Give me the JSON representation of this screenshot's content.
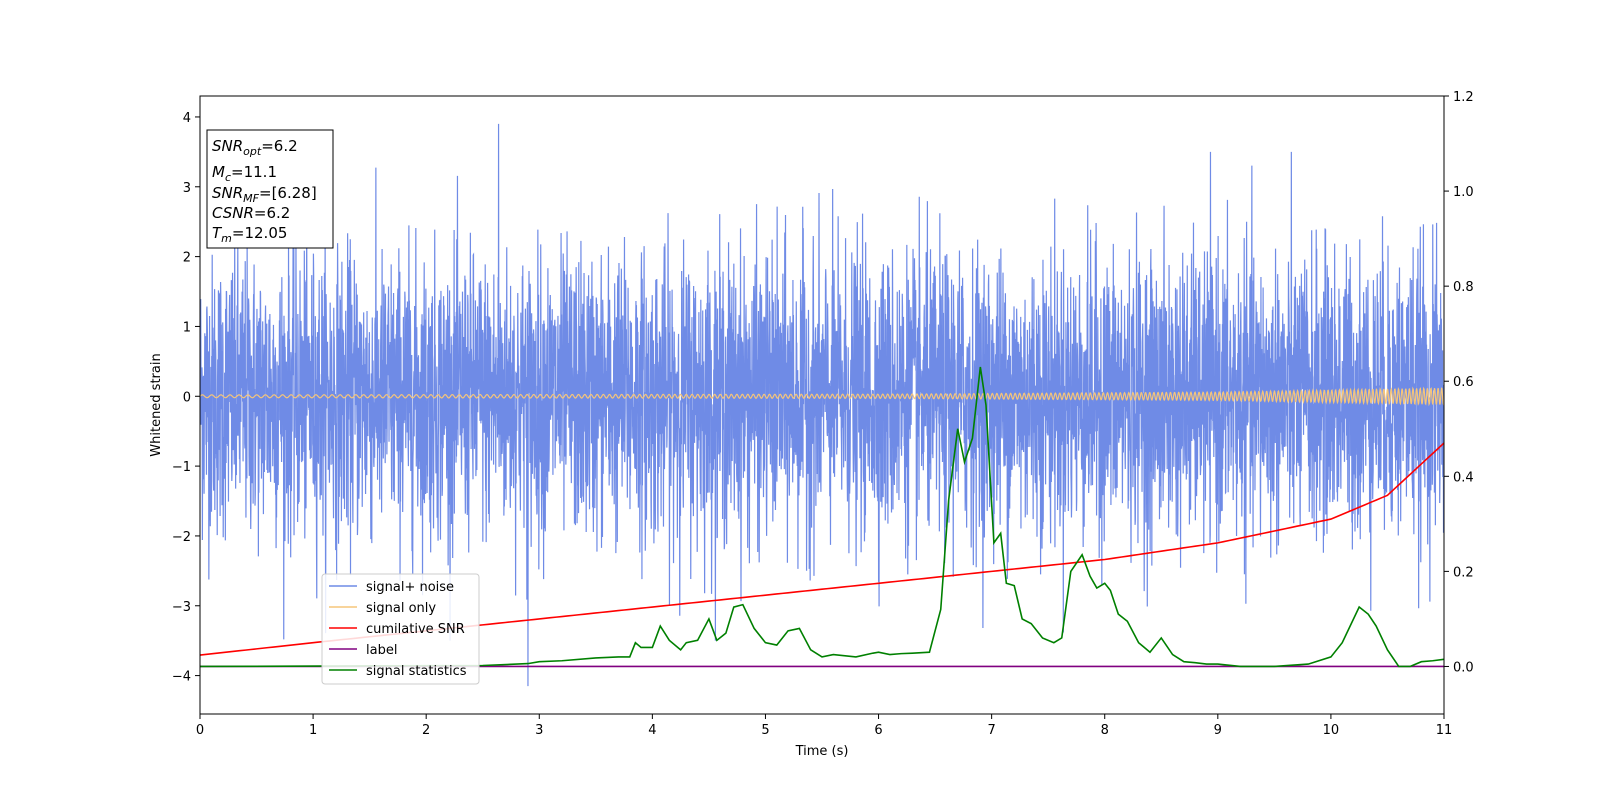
{
  "chart_data": {
    "type": "line",
    "title": "",
    "xlabel": "Time (s)",
    "ylabel": "Whitened strain",
    "xlim": [
      0,
      11
    ],
    "ylim": [
      -4.55,
      4.3
    ],
    "y2lim": [
      -0.1,
      1.2
    ],
    "grid": false,
    "legend_placement": "lower-left",
    "x_ticks": [
      "0",
      "1",
      "2",
      "3",
      "4",
      "5",
      "6",
      "7",
      "8",
      "9",
      "10",
      "11"
    ],
    "y_ticks": [
      "4",
      "3",
      "2",
      "1",
      "0",
      "−1",
      "−2",
      "−3",
      "−4"
    ],
    "y_tick_values": [
      4,
      3,
      2,
      1,
      0,
      -1,
      -2,
      -3,
      -4
    ],
    "y2_ticks": [
      "1.2",
      "1.0",
      "0.8",
      "0.6",
      "0.4",
      "0.2",
      "0.0"
    ],
    "y2_tick_values": [
      1.2,
      1.0,
      0.8,
      0.6,
      0.4,
      0.2,
      0.0
    ],
    "annotation_lines": [
      {
        "base": "SNR",
        "sub": "opt",
        "rest": "=6.2"
      },
      {
        "base": "M",
        "sub": "c",
        "rest": "=11.1"
      },
      {
        "base": "SNR",
        "sub": "MF",
        "rest": "=[6.28]"
      },
      {
        "base": "CSNR",
        "sub": "",
        "rest": "=6.2"
      },
      {
        "base": "T",
        "sub": "m",
        "rest": "=12.05"
      }
    ],
    "series": [
      {
        "name": "signal+ noise",
        "axis": "left",
        "color": "#6f8be6",
        "kind": "noise",
        "amplitude_std": 1.0,
        "extremes": {
          "max": 3.9,
          "min": -4.15
        }
      },
      {
        "name": "signal only",
        "axis": "left",
        "color": "#f5c57a",
        "kind": "chirp",
        "envelope": [
          [
            0,
            0.02
          ],
          [
            6,
            0.03
          ],
          [
            9,
            0.06
          ],
          [
            11,
            0.12
          ]
        ]
      },
      {
        "name": "cumilative SNR",
        "axis": "right",
        "color": "#ff0000",
        "x": [
          0,
          1,
          2,
          3,
          4,
          5,
          6,
          7,
          8,
          9,
          10,
          10.5,
          11
        ],
        "values": [
          0.024,
          0.05,
          0.075,
          0.1,
          0.125,
          0.15,
          0.175,
          0.2,
          0.225,
          0.26,
          0.31,
          0.36,
          0.47
        ]
      },
      {
        "name": "label",
        "axis": "right",
        "color": "#800080",
        "x": [
          0,
          11
        ],
        "values": [
          0.0,
          0.0
        ]
      },
      {
        "name": "signal statistics",
        "axis": "right",
        "color": "#008000",
        "x": [
          0,
          2.5,
          2.9,
          3.0,
          3.2,
          3.5,
          3.7,
          3.8,
          3.85,
          3.9,
          4.0,
          4.07,
          4.15,
          4.25,
          4.3,
          4.4,
          4.5,
          4.57,
          4.65,
          4.72,
          4.8,
          4.9,
          5.0,
          5.1,
          5.2,
          5.3,
          5.4,
          5.5,
          5.6,
          5.8,
          5.95,
          6.0,
          6.1,
          6.2,
          6.3,
          6.45,
          6.55,
          6.62,
          6.7,
          6.76,
          6.83,
          6.9,
          6.95,
          7.02,
          7.08,
          7.13,
          7.2,
          7.27,
          7.35,
          7.45,
          7.55,
          7.62,
          7.7,
          7.8,
          7.87,
          7.93,
          8.0,
          8.05,
          8.12,
          8.2,
          8.3,
          8.4,
          8.5,
          8.6,
          8.7,
          8.8,
          8.9,
          9.0,
          9.2,
          9.5,
          9.8,
          10.0,
          10.1,
          10.25,
          10.33,
          10.4,
          10.5,
          10.6,
          10.7,
          10.8,
          10.9,
          11.0
        ],
        "values": [
          0.0,
          0.002,
          0.006,
          0.01,
          0.012,
          0.018,
          0.02,
          0.02,
          0.05,
          0.04,
          0.04,
          0.085,
          0.055,
          0.035,
          0.05,
          0.055,
          0.1,
          0.055,
          0.07,
          0.125,
          0.13,
          0.08,
          0.05,
          0.045,
          0.075,
          0.08,
          0.035,
          0.02,
          0.025,
          0.02,
          0.028,
          0.03,
          0.025,
          0.027,
          0.028,
          0.03,
          0.12,
          0.35,
          0.5,
          0.43,
          0.48,
          0.63,
          0.55,
          0.26,
          0.28,
          0.175,
          0.17,
          0.1,
          0.09,
          0.06,
          0.05,
          0.06,
          0.2,
          0.235,
          0.19,
          0.165,
          0.175,
          0.16,
          0.11,
          0.095,
          0.05,
          0.03,
          0.06,
          0.025,
          0.01,
          0.008,
          0.005,
          0.005,
          0.0,
          0.0,
          0.005,
          0.02,
          0.05,
          0.125,
          0.11,
          0.085,
          0.035,
          0.0,
          0.0,
          0.01,
          0.012,
          0.015
        ]
      }
    ]
  }
}
